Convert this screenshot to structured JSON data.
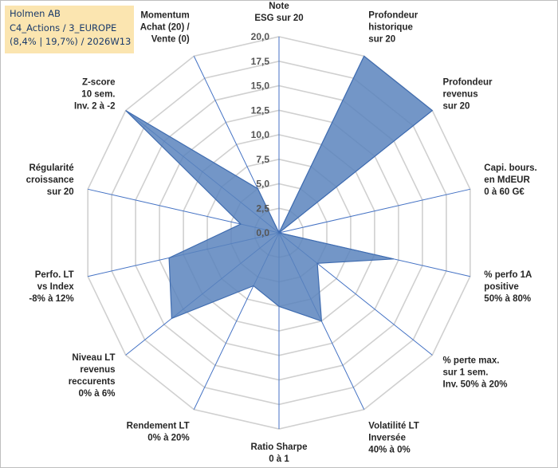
{
  "info_box": {
    "line1": "Holmen AB",
    "line2": "C4_Actions / 3_EUROPE",
    "line3": "(8,4% | 19,7%) / 2026W13"
  },
  "colors": {
    "fill": "#5b84bd",
    "stroke": "#3f6cb0",
    "grid": "#d0d0d0",
    "axis_line": "#4472c4"
  },
  "chart_data": {
    "type": "radar",
    "rmin": 0,
    "rmax": 20,
    "ticks": [
      "0,0",
      "2,5",
      "5,0",
      "7,5",
      "10,0",
      "12,5",
      "15,0",
      "17,5",
      "20,0"
    ],
    "tick_values": [
      0,
      2.5,
      5,
      7.5,
      10,
      12.5,
      15,
      17.5,
      20
    ],
    "axes": [
      {
        "lines": [
          "Note",
          "ESG sur 20"
        ],
        "value": 0
      },
      {
        "lines": [
          "Profondeur",
          "historique",
          "sur 20"
        ],
        "value": 20
      },
      {
        "lines": [
          "Profondeur",
          "revenus",
          "sur 20"
        ],
        "value": 20
      },
      {
        "lines": [
          "Capi. bours.",
          "en MdEUR",
          "0 à 60 G€"
        ],
        "value": 0
      },
      {
        "lines": [
          "% perfo 1A",
          "positive",
          "50% à 80%"
        ],
        "value": 12
      },
      {
        "lines": [
          "% perte max.",
          "sur 1 sem.",
          "Inv. 50% à 20%"
        ],
        "value": 5
      },
      {
        "lines": [
          "Volatilité LT",
          "Inversée",
          "40% à 0%"
        ],
        "value": 10
      },
      {
        "lines": [
          "Ratio Sharpe",
          "0 à 1"
        ],
        "value": 7.5
      },
      {
        "lines": [
          "Rendement LT",
          "0% à 20%"
        ],
        "value": 6
      },
      {
        "lines": [
          "Niveau LT",
          "revenus",
          "reccurents",
          "0% à 6%"
        ],
        "value": 14
      },
      {
        "lines": [
          "Perfo. LT",
          "vs Index",
          "-8% à 12%"
        ],
        "value": 11.5
      },
      {
        "lines": [
          "Régularité",
          "croissance",
          "sur 20"
        ],
        "value": 4
      },
      {
        "lines": [
          "Z-score",
          "10 sem.",
          "Inv. 2 à -2"
        ],
        "value": 20
      },
      {
        "lines": [
          "Momentum",
          "Achat (20) /",
          "Vente (0)"
        ],
        "value": 5
      }
    ]
  }
}
